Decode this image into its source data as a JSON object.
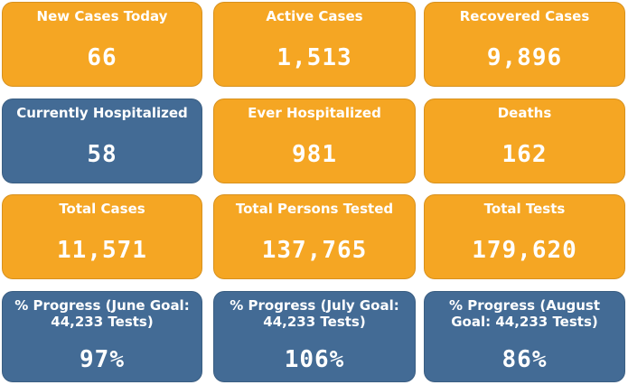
{
  "tiles": [
    {
      "label": "New Cases Today",
      "value": "66",
      "color": "#f5a623"
    },
    {
      "label": "Active Cases",
      "value": "1,513",
      "color": "#f5a623"
    },
    {
      "label": "Recovered Cases",
      "value": "9,896",
      "color": "#f5a623"
    },
    {
      "label": "Currently Hospitalized",
      "value": "58",
      "color": "#436b95"
    },
    {
      "label": "Ever Hospitalized",
      "value": "981",
      "color": "#f5a623"
    },
    {
      "label": "Deaths",
      "value": "162",
      "color": "#f5a623"
    },
    {
      "label": "Total Cases",
      "value": "11,571",
      "color": "#f5a623"
    },
    {
      "label": "Total Persons Tested",
      "value": "137,765",
      "color": "#f5a623"
    },
    {
      "label": "Total Tests",
      "value": "179,620",
      "color": "#f5a623"
    },
    {
      "label": "% Progress (June Goal: 44,233 Tests)",
      "value": "97%",
      "color": "#436b95"
    },
    {
      "label": "% Progress (July Goal: 44,233 Tests)",
      "value": "106%",
      "color": "#436b95"
    },
    {
      "label": "% Progress (August Goal: 44,233 Tests)",
      "value": "86%",
      "color": "#436b95"
    }
  ]
}
